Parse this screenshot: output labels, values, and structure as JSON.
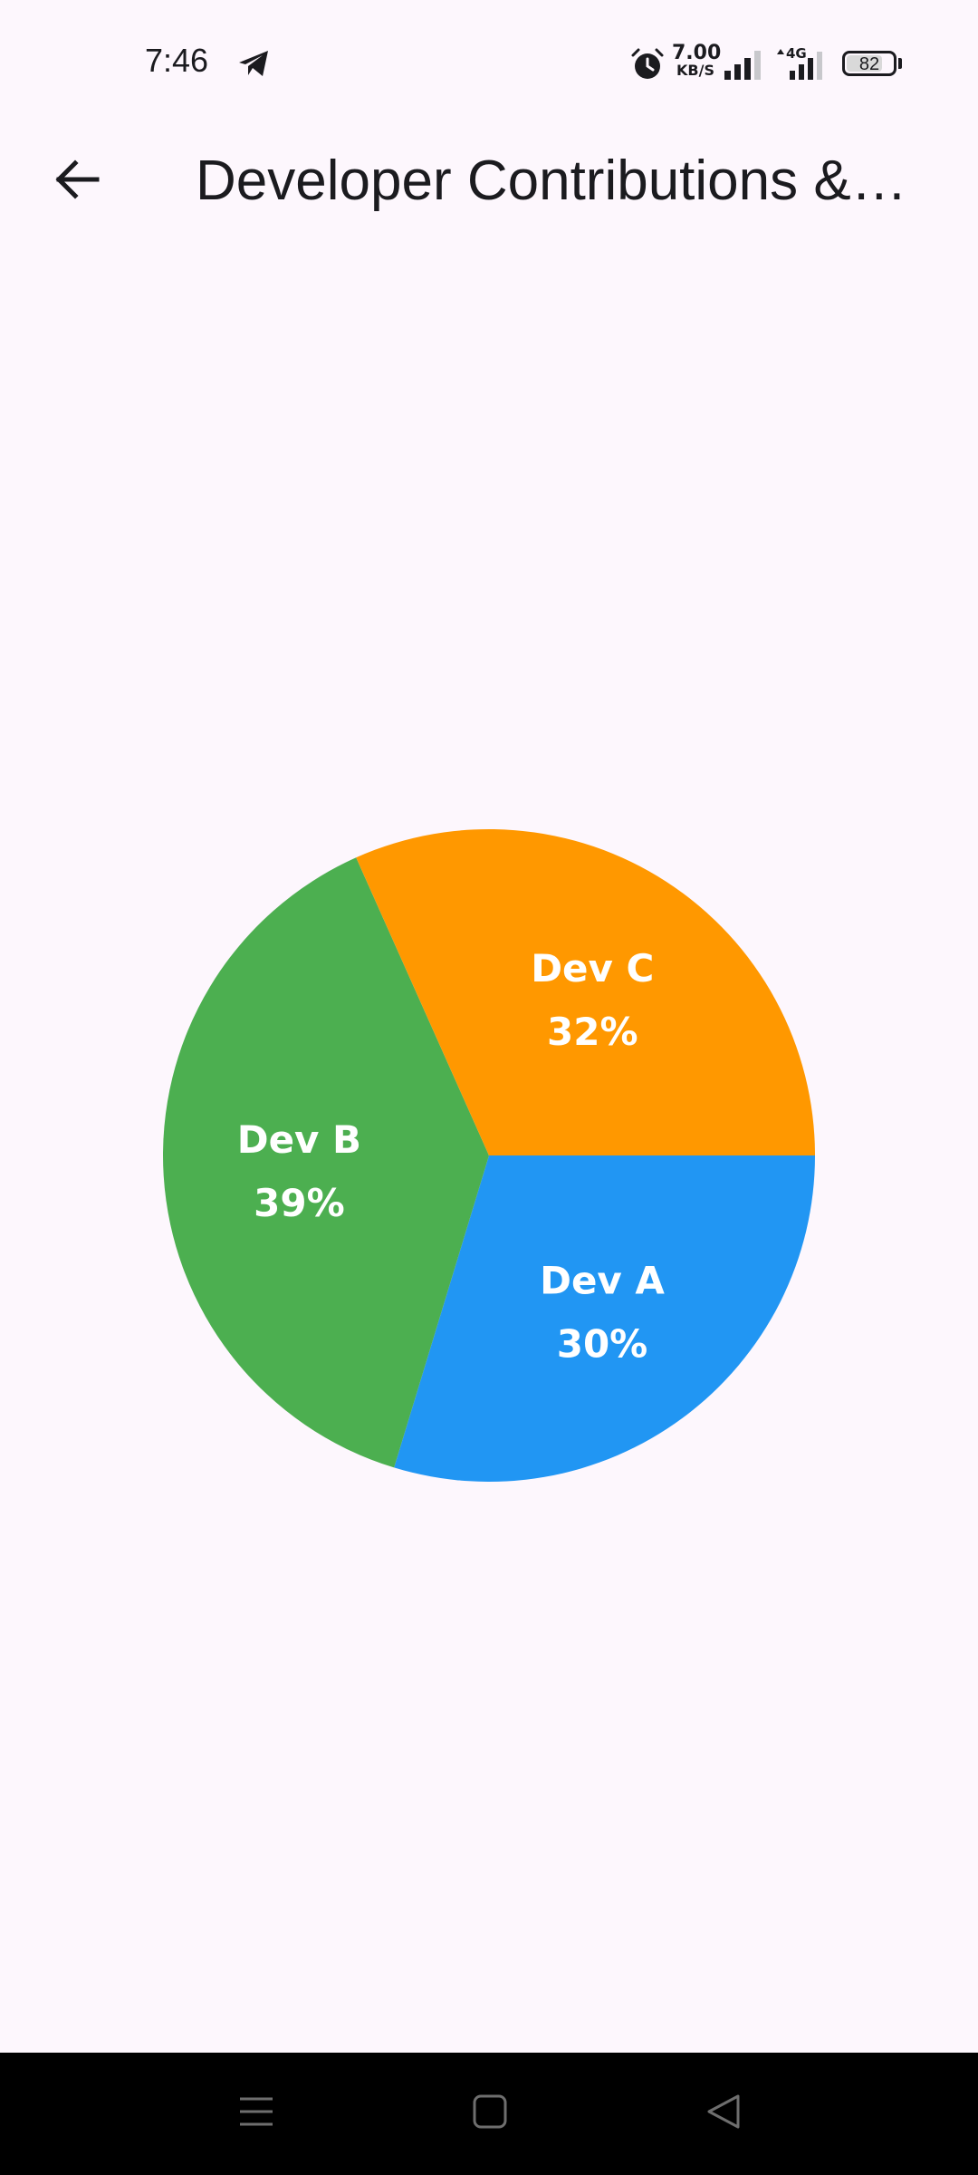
{
  "status_bar": {
    "time": "7:46",
    "net_speed_value": "7.00",
    "net_speed_unit": "KB/S",
    "network_type": "4G",
    "battery": "82",
    "battery_level": 0.82,
    "icons": [
      "telegram-icon",
      "alarm-icon",
      "signal-icon",
      "signal-4g-icon",
      "battery-icon"
    ]
  },
  "app_bar": {
    "title": "Developer Contributions &…",
    "back_icon": "arrow-back-icon"
  },
  "colors": {
    "background": "#fdf7fd",
    "dev_a": "#2196f3",
    "dev_b": "#4caf50",
    "dev_c": "#ff9800",
    "label": "#ffffff",
    "nav_bar": "#000000"
  },
  "chart_data": {
    "type": "pie",
    "start_angle_deg": 0,
    "direction": "clockwise",
    "slices": [
      {
        "label": "Dev A",
        "percent_text": "30%",
        "value": 30,
        "color": "#2196f3"
      },
      {
        "label": "Dev B",
        "percent_text": "39%",
        "value": 39,
        "color": "#4caf50"
      },
      {
        "label": "Dev C",
        "percent_text": "32%",
        "value": 32,
        "color": "#ff9800"
      }
    ]
  },
  "nav_bar": {
    "icons": [
      "menu-icon",
      "home-icon",
      "back-triangle-icon"
    ]
  }
}
